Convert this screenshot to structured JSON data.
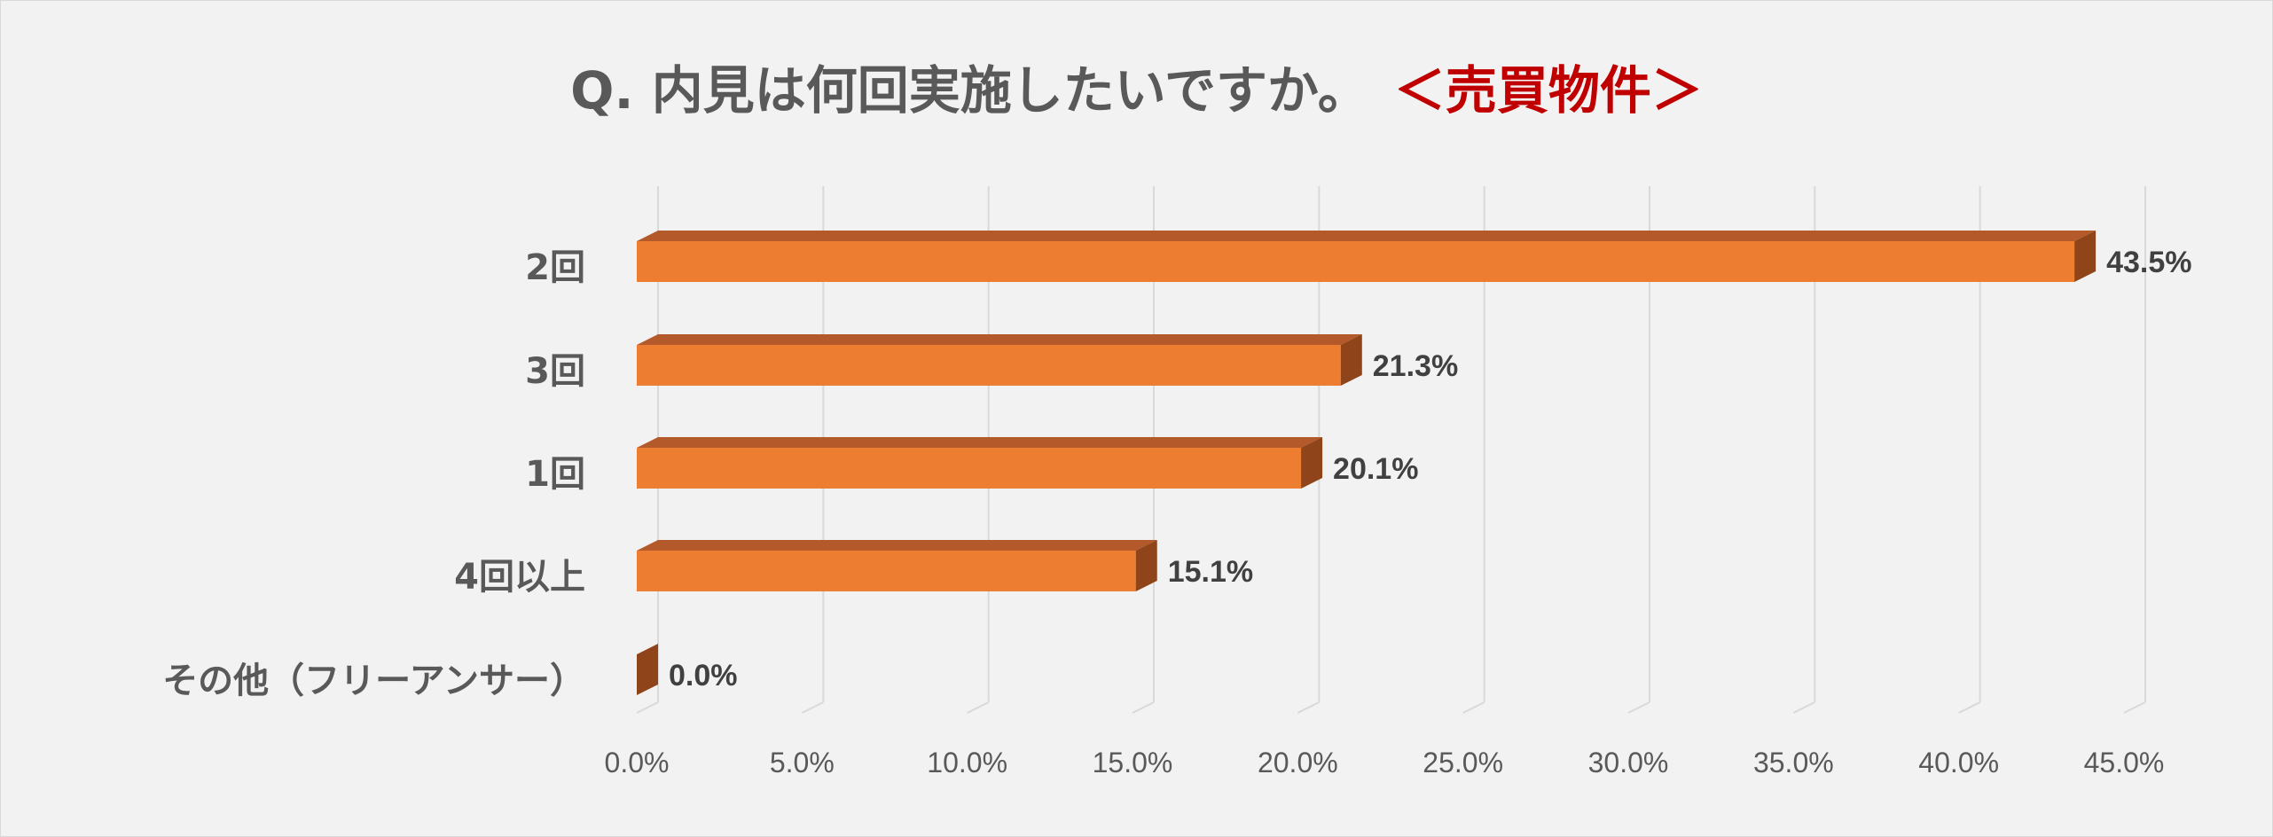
{
  "title": {
    "question": "Q. 内見は何回実施したいですか。",
    "category": "＜売買物件＞"
  },
  "colors": {
    "bar_front": "#ed7d31",
    "bar_top": "#b4592a",
    "bar_side": "#8f4419",
    "accent": "#c00000",
    "grid": "#d9d9d9"
  },
  "chart_data": {
    "type": "bar",
    "orientation": "horizontal",
    "style": "3d",
    "categories": [
      "2回",
      "3回",
      "1回",
      "4回以上",
      "その他（フリーアンサー）"
    ],
    "values": [
      43.5,
      21.3,
      20.1,
      15.1,
      0.0
    ],
    "value_labels": [
      "43.5%",
      "21.3%",
      "20.1%",
      "15.1%",
      "0.0%"
    ],
    "xlim": [
      0,
      45
    ],
    "xticks": [
      0,
      5,
      10,
      15,
      20,
      25,
      30,
      35,
      40,
      45
    ],
    "xtick_labels": [
      "0.0%",
      "5.0%",
      "10.0%",
      "15.0%",
      "20.0%",
      "25.0%",
      "30.0%",
      "35.0%",
      "40.0%",
      "45.0%"
    ],
    "grid": true,
    "legend": "none"
  }
}
